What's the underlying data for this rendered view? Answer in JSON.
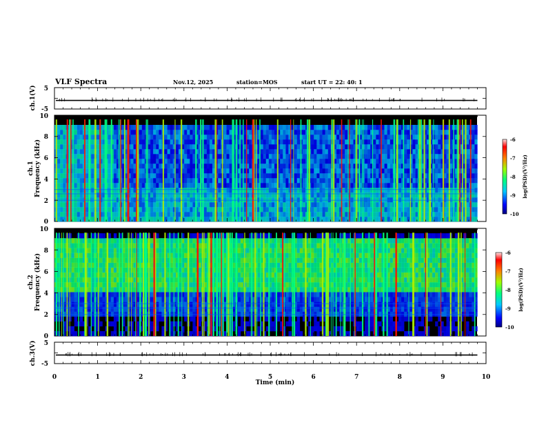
{
  "header": {
    "title": "VLF Spectra",
    "date": "Nov.12, 2025",
    "station": "station=MOS",
    "start_ut": "start  UT  =   22: 40: 1"
  },
  "chart_data": [
    {
      "type": "line",
      "name": "ch1-waveform",
      "ylabel": "ch.1(V)",
      "ylim": [
        -5,
        5
      ],
      "yticks": [
        "5",
        "-5"
      ],
      "xlim": [
        0,
        10
      ],
      "baseline": -1
    },
    {
      "type": "heatmap",
      "name": "ch1-spectrogram",
      "ylabel_top": "ch.1",
      "ylabel": "Frequency (kHz)",
      "ylim": [
        0,
        10
      ],
      "yticks": [
        "0",
        "2",
        "4",
        "6",
        "8",
        "10"
      ],
      "xlim": [
        0,
        10
      ],
      "data_end_min": 9.8,
      "colorbar": {
        "label": "log(PSD)(V²/Hz)",
        "range": [
          -10,
          -6
        ],
        "ticks": [
          "-6",
          "-7",
          "-8",
          "-9",
          "-10"
        ]
      }
    },
    {
      "type": "heatmap",
      "name": "ch2-spectrogram",
      "ylabel_top": "ch.2",
      "ylabel": "Frequency (kHz)",
      "ylim": [
        0,
        10
      ],
      "yticks": [
        "0",
        "2",
        "4",
        "6",
        "8",
        "10"
      ],
      "xlim": [
        0,
        10
      ],
      "data_end_min": 9.8,
      "colorbar": {
        "label": "log(PSD)(V²/Hz)",
        "range": [
          -10,
          -6
        ],
        "ticks": [
          "-6",
          "-7",
          "-8",
          "-9",
          "-10"
        ]
      }
    },
    {
      "type": "line",
      "name": "ch3-waveform",
      "ylabel": "ch.3(V)",
      "ylim": [
        -5,
        5
      ],
      "yticks": [
        "5",
        "-5"
      ],
      "xlim": [
        0,
        10
      ],
      "baseline": -1,
      "xlabel": "Time (min)",
      "xticks": [
        "0",
        "1",
        "2",
        "3",
        "4",
        "5",
        "6",
        "7",
        "8",
        "9",
        "10"
      ]
    }
  ],
  "colors": {
    "background": "#ffffff",
    "frame": "#000000",
    "trace": "#000000"
  }
}
